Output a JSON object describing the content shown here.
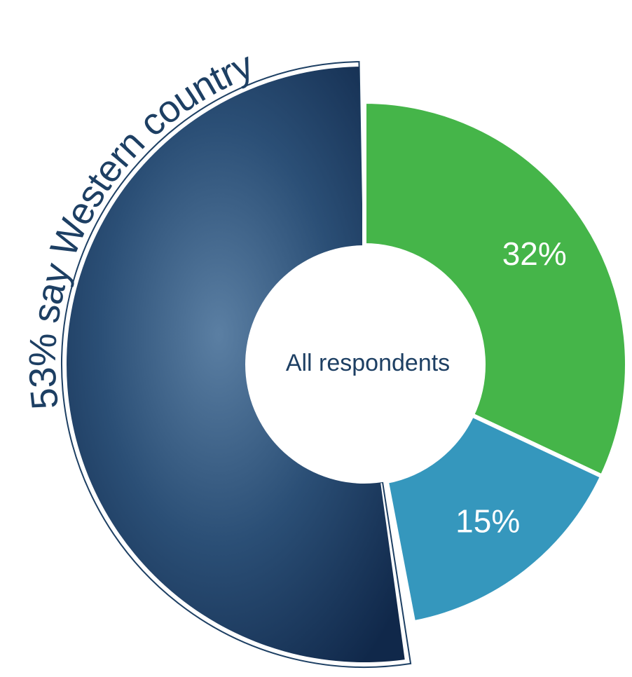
{
  "chart_data": {
    "type": "donut",
    "title": "53% say Western country",
    "center_label": "All respondents",
    "values": [
      32,
      15
    ],
    "value_labels": [
      "32%",
      "15%"
    ],
    "colors": [
      "#45b549",
      "#3597bd"
    ]
  }
}
